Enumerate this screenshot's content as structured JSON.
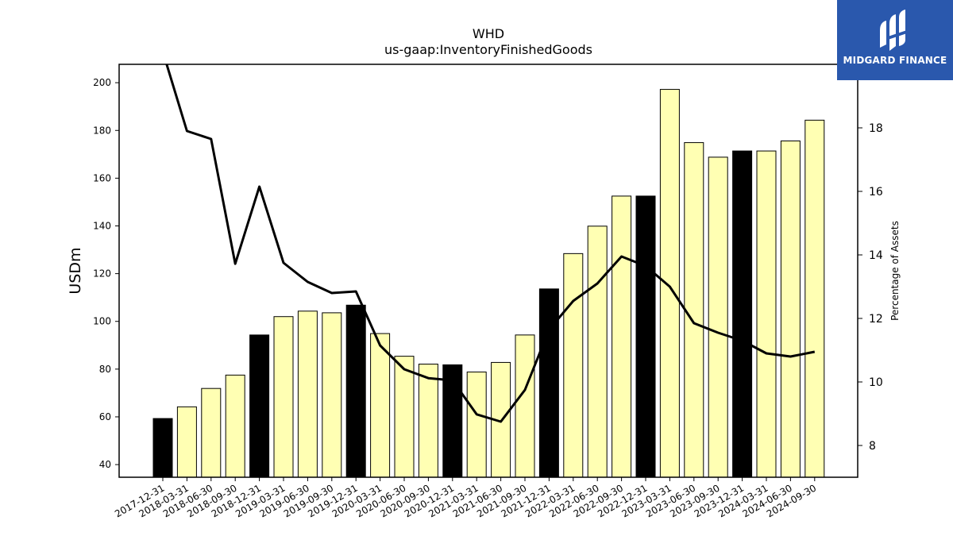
{
  "title": "WHD",
  "subtitle": "us-gaap:InventoryFinishedGoods",
  "logo": {
    "text": "MIDGARD FINANCE",
    "icon": "midgard-logo-icon",
    "background": "#2a58ad"
  },
  "colors": {
    "highlight_bar": "#000000",
    "normal_bar": "#ffffb3",
    "line": "#000000"
  },
  "chart_data": {
    "type": "bar",
    "title": "WHD",
    "subtitle": "us-gaap:InventoryFinishedGoods",
    "categories": [
      "2017-12-31",
      "2018-03-31",
      "2018-06-30",
      "2018-09-30",
      "2018-12-31",
      "2019-03-31",
      "2019-06-30",
      "2019-09-30",
      "2019-12-31",
      "2020-03-31",
      "2020-06-30",
      "2020-09-30",
      "2020-12-31",
      "2021-03-31",
      "2021-06-30",
      "2021-09-30",
      "2021-12-31",
      "2022-03-31",
      "2022-06-30",
      "2022-09-30",
      "2022-12-31",
      "2023-03-31",
      "2023-06-30",
      "2023-09-30",
      "2023-12-31",
      "2024-03-31",
      "2024-06-30",
      "2024-09-30"
    ],
    "series": [
      {
        "type": "bar",
        "axis": "left",
        "values": [
          59.3,
          64.2,
          71.9,
          77.5,
          94.3,
          102.0,
          104.3,
          103.6,
          106.8,
          94.9,
          85.4,
          82.1,
          81.8,
          78.8,
          82.8,
          94.3,
          113.6,
          128.4,
          139.9,
          152.5,
          152.5,
          197.2,
          174.9,
          168.8,
          171.4,
          171.4,
          175.6,
          184.3
        ],
        "highlight": [
          true,
          false,
          false,
          false,
          true,
          false,
          false,
          false,
          true,
          false,
          false,
          false,
          true,
          false,
          false,
          false,
          true,
          false,
          false,
          false,
          true,
          false,
          false,
          false,
          true,
          false,
          false,
          false
        ]
      },
      {
        "type": "line",
        "axis": "right",
        "values": [
          20.4,
          17.9,
          17.65,
          13.72,
          16.15,
          13.75,
          13.15,
          12.8,
          12.85,
          11.15,
          10.4,
          10.12,
          10.05,
          8.98,
          8.75,
          9.75,
          11.65,
          12.55,
          13.1,
          13.95,
          13.65,
          13.0,
          11.85,
          11.55,
          11.3,
          10.9,
          10.8,
          10.95
        ]
      }
    ],
    "ylabel": "USDm",
    "ylabel_right": "Percentage of Assets",
    "ylim": [
      34.7,
      207.7
    ],
    "ylim_right": [
      7.0,
      20.0
    ],
    "yticks": [
      "40",
      "60",
      "80",
      "100",
      "120",
      "140",
      "160",
      "180",
      "200"
    ],
    "yticks_right": [
      "8",
      "10",
      "12",
      "14",
      "16",
      "18"
    ],
    "grid": false,
    "legend": "none"
  }
}
